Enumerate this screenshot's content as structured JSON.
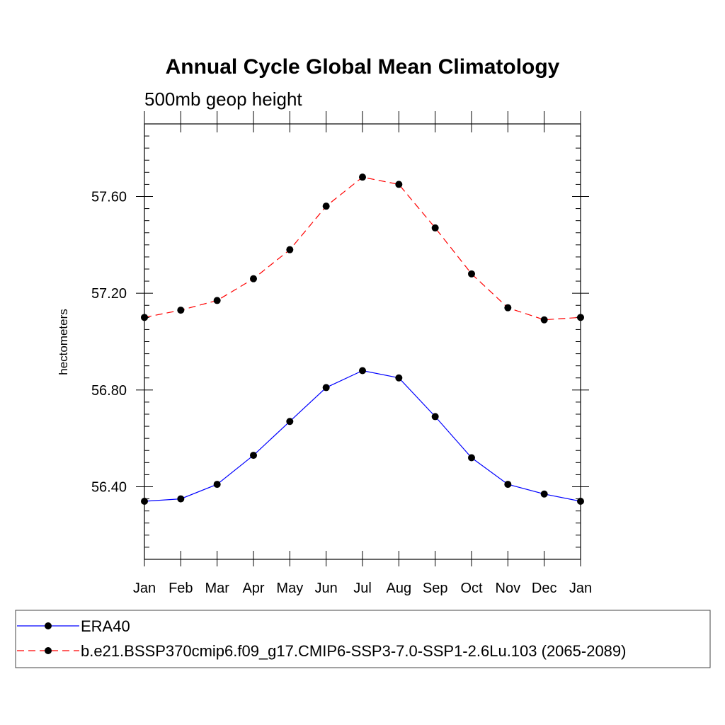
{
  "chart_data": {
    "type": "line",
    "title": "Annual Cycle Global Mean Climatology",
    "subtitle": "500mb geop height",
    "xlabel": "",
    "ylabel": "hectometers",
    "categories": [
      "Jan",
      "Feb",
      "Mar",
      "Apr",
      "May",
      "Jun",
      "Jul",
      "Aug",
      "Sep",
      "Oct",
      "Nov",
      "Dec",
      "Jan"
    ],
    "ylim": [
      56.1,
      57.9
    ],
    "yticks": [
      "56.40",
      "56.80",
      "57.20",
      "57.60"
    ],
    "grid": false,
    "legend_position": "bottom",
    "series": [
      {
        "name": "ERA40",
        "color": "#0000ff",
        "dash": "solid",
        "values": [
          56.34,
          56.35,
          56.41,
          56.53,
          56.67,
          56.81,
          56.88,
          56.85,
          56.69,
          56.52,
          56.41,
          56.37,
          56.34
        ]
      },
      {
        "name": "b.e21.BSSP370cmip6.f09_g17.CMIP6-SSP3-7.0-SSP1-2.6Lu.103 (2065-2089)",
        "color": "#ff0000",
        "dash": "dashed",
        "values": [
          57.1,
          57.13,
          57.17,
          57.26,
          57.38,
          57.56,
          57.68,
          57.65,
          57.47,
          57.28,
          57.14,
          57.09,
          57.1
        ]
      }
    ]
  }
}
